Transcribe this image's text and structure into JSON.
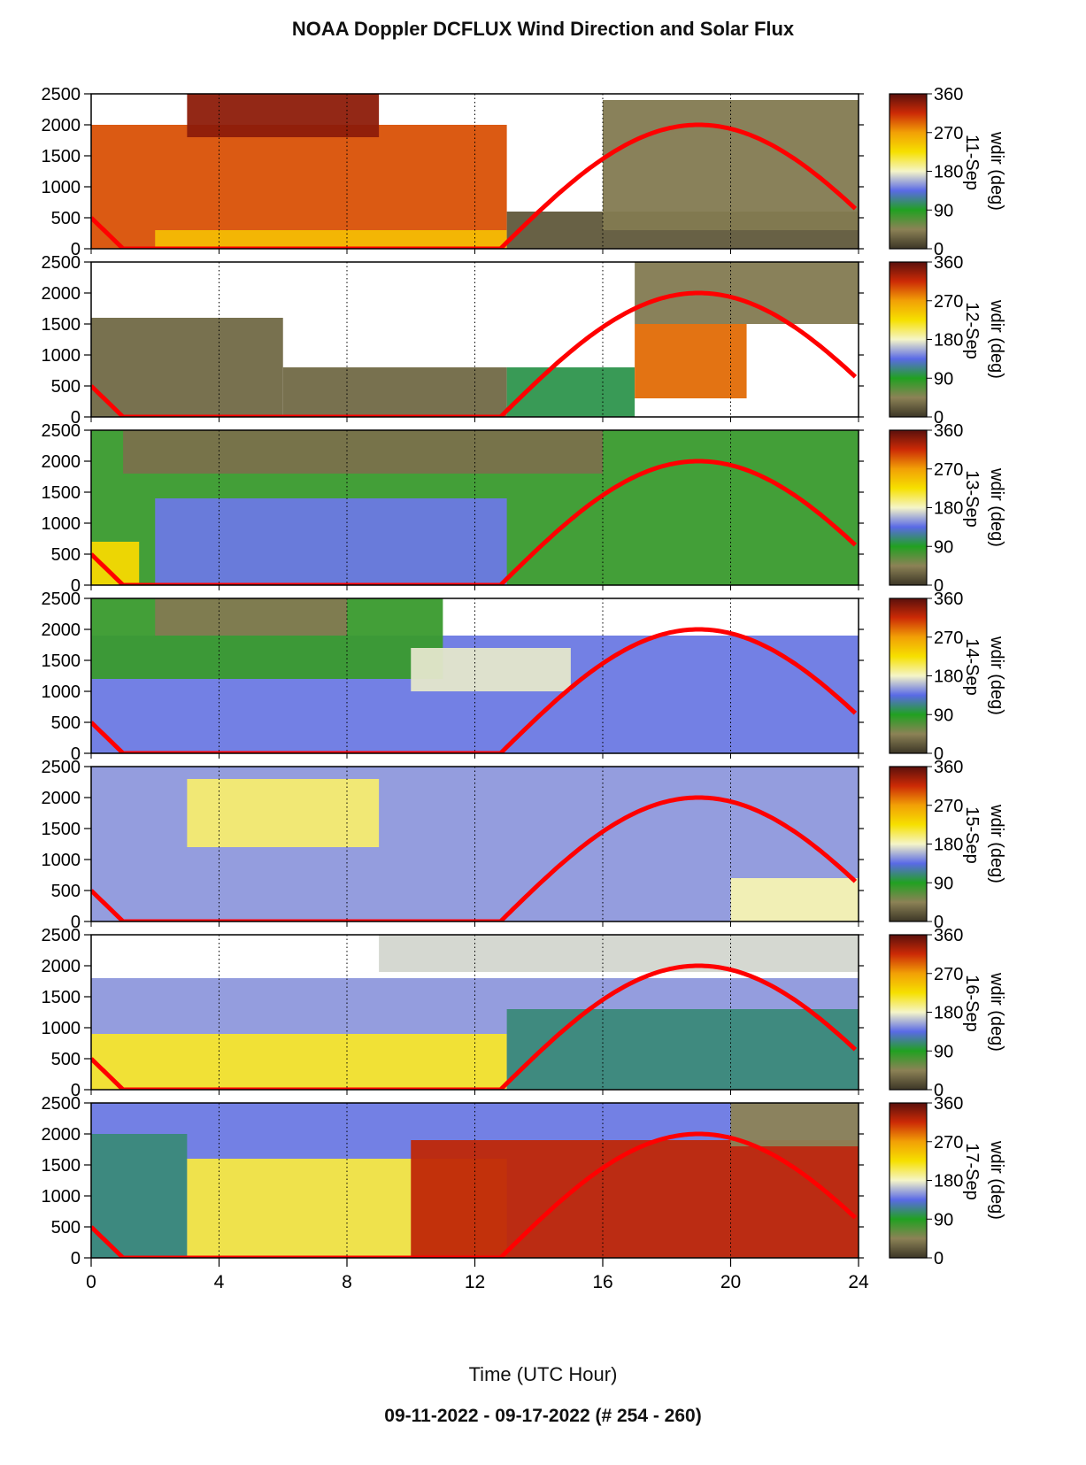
{
  "title": "NOAA Doppler DCFLUX Wind Direction and Solar Flux",
  "footer": "09-11-2022 - 09-17-2022   (# 254 - 260)",
  "chart_data": {
    "type": "heatmap",
    "xlabel": "Time (UTC Hour)",
    "xlim": [
      0,
      24
    ],
    "xticks": [
      0,
      4,
      8,
      12,
      16,
      20,
      24
    ],
    "ylim": [
      0,
      2500
    ],
    "yticks": [
      0,
      500,
      1000,
      1500,
      2000,
      2500
    ],
    "colorbar": {
      "label": "wdir (deg)",
      "ticks": [
        0,
        90,
        180,
        270,
        360
      ],
      "colors": [
        "#3c3626",
        "#8c8256",
        "#21a121",
        "#5a6ae6",
        "#f5f5c8",
        "#f6e000",
        "#f2a006",
        "#cc2a06",
        "#5a100c"
      ]
    },
    "solar_flux_curve_color": "#ff0000",
    "panels": [
      {
        "day": "11-Sep",
        "regions": [
          {
            "x": [
              0,
              13
            ],
            "y": [
              0,
              2000
            ],
            "wdir": 300
          },
          {
            "x": [
              2,
              13
            ],
            "y": [
              0,
              300
            ],
            "wdir": 250
          },
          {
            "x": [
              3,
              9
            ],
            "y": [
              1800,
              2500
            ],
            "wdir": 340
          },
          {
            "x": [
              13,
              24
            ],
            "y": [
              0,
              600
            ],
            "wdir": 20
          },
          {
            "x": [
              16,
              24
            ],
            "y": [
              300,
              2400
            ],
            "wdir": 40
          }
        ]
      },
      {
        "day": "12-Sep",
        "regions": [
          {
            "x": [
              0,
              6
            ],
            "y": [
              0,
              1600
            ],
            "wdir": 30
          },
          {
            "x": [
              6,
              13
            ],
            "y": [
              0,
              800
            ],
            "wdir": 30
          },
          {
            "x": [
              13,
              17
            ],
            "y": [
              0,
              800
            ],
            "wdir": 100
          },
          {
            "x": [
              17,
              20.5
            ],
            "y": [
              300,
              1500
            ],
            "wdir": 290
          },
          {
            "x": [
              17,
              24
            ],
            "y": [
              1500,
              2500
            ],
            "wdir": 40
          }
        ]
      },
      {
        "day": "13-Sep",
        "regions": [
          {
            "x": [
              0,
              24
            ],
            "y": [
              0,
              2500
            ],
            "wdir": 80
          },
          {
            "x": [
              2,
              13
            ],
            "y": [
              0,
              1400
            ],
            "wdir": 140
          },
          {
            "x": [
              1,
              16
            ],
            "y": [
              1800,
              2500
            ],
            "wdir": 35
          },
          {
            "x": [
              0,
              1.5
            ],
            "y": [
              0,
              700
            ],
            "wdir": 230
          }
        ]
      },
      {
        "day": "14-Sep",
        "regions": [
          {
            "x": [
              0,
              24
            ],
            "y": [
              0,
              1900
            ],
            "wdir": 140
          },
          {
            "x": [
              0,
              11
            ],
            "y": [
              1200,
              2500
            ],
            "wdir": 80
          },
          {
            "x": [
              2,
              8
            ],
            "y": [
              1900,
              2500
            ],
            "wdir": 40
          },
          {
            "x": [
              10,
              15
            ],
            "y": [
              1000,
              1700
            ],
            "wdir": 175
          }
        ]
      },
      {
        "day": "15-Sep",
        "regions": [
          {
            "x": [
              0,
              24
            ],
            "y": [
              0,
              2500
            ],
            "wdir": 150
          },
          {
            "x": [
              3,
              9
            ],
            "y": [
              1200,
              2300
            ],
            "wdir": 200
          },
          {
            "x": [
              20,
              24
            ],
            "y": [
              0,
              700
            ],
            "wdir": 185
          }
        ]
      },
      {
        "day": "16-Sep",
        "regions": [
          {
            "x": [
              0,
              24
            ],
            "y": [
              0,
              1800
            ],
            "wdir": 150
          },
          {
            "x": [
              0,
              13
            ],
            "y": [
              0,
              900
            ],
            "wdir": 215
          },
          {
            "x": [
              13,
              24
            ],
            "y": [
              0,
              1300
            ],
            "wdir": 110
          },
          {
            "x": [
              9,
              24
            ],
            "y": [
              1900,
              2500
            ],
            "wdir": 170
          }
        ]
      },
      {
        "day": "17-Sep",
        "regions": [
          {
            "x": [
              0,
              24
            ],
            "y": [
              0,
              2500
            ],
            "wdir": 140
          },
          {
            "x": [
              0,
              3
            ],
            "y": [
              0,
              2000
            ],
            "wdir": 110
          },
          {
            "x": [
              3,
              13
            ],
            "y": [
              0,
              1600
            ],
            "wdir": 210
          },
          {
            "x": [
              10,
              24
            ],
            "y": [
              0,
              1900
            ],
            "wdir": 320
          },
          {
            "x": [
              20,
              24
            ],
            "y": [
              1800,
              2500
            ],
            "wdir": 45
          }
        ]
      }
    ]
  }
}
